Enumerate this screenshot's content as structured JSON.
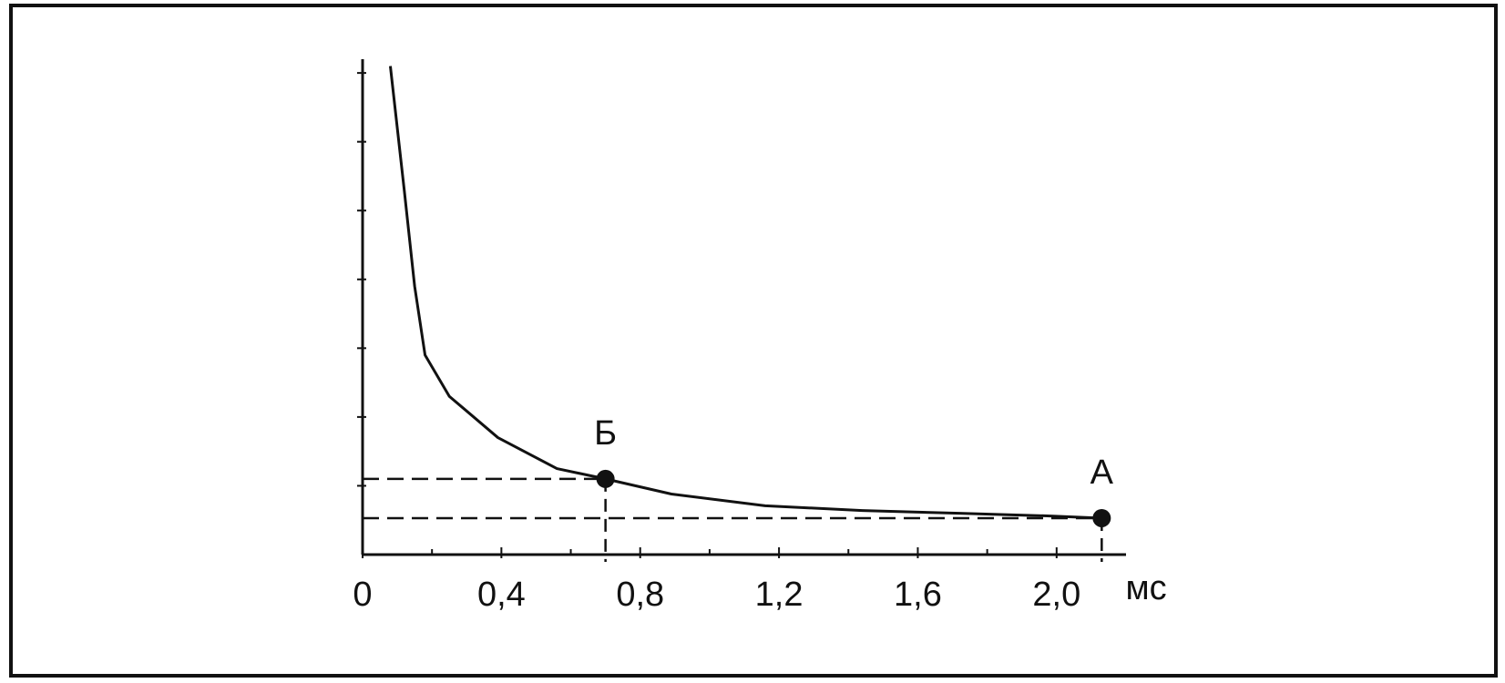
{
  "chart_data": {
    "type": "line",
    "xlabel": "мс",
    "x": [
      0.08,
      0.12,
      0.15,
      0.18,
      0.25,
      0.39,
      0.56,
      0.7,
      0.89,
      1.16,
      1.44,
      1.72,
      1.99,
      2.13
    ],
    "series": [
      {
        "color": "#111111",
        "values": [
          7.1,
          5.3,
          3.9,
          2.9,
          2.3,
          1.7,
          1.25,
          1.1,
          0.88,
          0.71,
          0.64,
          0.6,
          0.56,
          0.53
        ]
      }
    ],
    "points": [
      {
        "label": "Б",
        "x": 0.7,
        "y": 1.1
      },
      {
        "label": "А",
        "x": 2.13,
        "y": 0.53
      }
    ],
    "xlim": [
      0,
      2.2
    ],
    "xticks": [
      {
        "value": 0,
        "label": "0"
      },
      {
        "value": 0.4,
        "label": "0,4"
      },
      {
        "value": 0.8,
        "label": "0,8"
      },
      {
        "value": 1.2,
        "label": "1,2"
      },
      {
        "value": 1.6,
        "label": "1,6"
      },
      {
        "value": 2.0,
        "label": "2,0"
      }
    ],
    "xminorticks": [
      0.2,
      0.6,
      1.0,
      1.4,
      1.8
    ],
    "ylim": [
      0,
      7.2
    ],
    "yticks": [
      1,
      2,
      3,
      4,
      5,
      6,
      7
    ]
  }
}
